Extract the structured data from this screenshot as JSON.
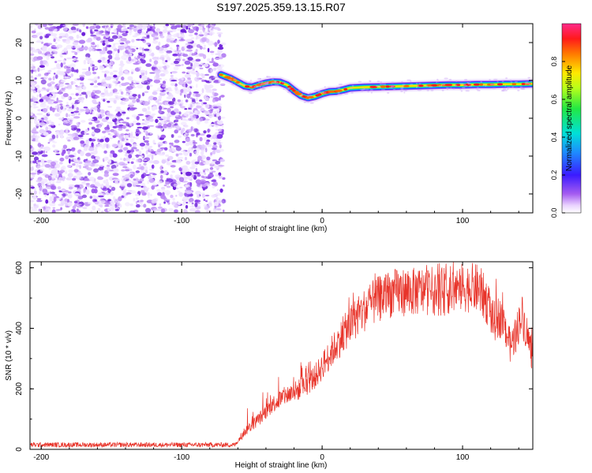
{
  "title": "S197.2025.359.13.15.R07",
  "chart_data": [
    {
      "type": "heatmap",
      "name": "spectrogram",
      "xlabel": "Height of straight line (km)",
      "ylabel": "Frequency (Hz)",
      "xlim": [
        -208,
        150
      ],
      "ylim": [
        -25,
        25
      ],
      "xticks": [
        -200,
        -100,
        0,
        100
      ],
      "yticks": [
        -20,
        -10,
        0,
        10,
        20
      ],
      "noise_region_x": [
        -208,
        -70
      ],
      "ridge": {
        "x": [
          -72,
          -65,
          -60,
          -55,
          -50,
          -45,
          -40,
          -35,
          -30,
          -25,
          -20,
          -15,
          -10,
          -5,
          0,
          5,
          10,
          15,
          20,
          30,
          40,
          50,
          60,
          70,
          80,
          90,
          100,
          110,
          120,
          130,
          140,
          150
        ],
        "y": [
          11.5,
          10.5,
          9.5,
          8.5,
          8.2,
          8.8,
          9.3,
          9.6,
          9.5,
          8.8,
          7.3,
          6.0,
          5.4,
          5.8,
          6.5,
          7.0,
          7.1,
          7.5,
          8.0,
          8.2,
          8.3,
          8.4,
          8.5,
          8.6,
          8.7,
          8.8,
          8.8,
          8.9,
          8.9,
          9.0,
          9.0,
          9.1
        ]
      },
      "colorbar": {
        "label": "Normalized spectral amplitude",
        "ticks": [
          "0.0",
          "0.2",
          "0.4",
          "0.6",
          "0.8"
        ],
        "range": [
          0,
          1
        ]
      }
    },
    {
      "type": "line",
      "name": "snr",
      "xlabel": "Height of straight line (km)",
      "ylabel": "SNR (10 * v/v)",
      "xlim": [
        -208,
        150
      ],
      "ylim": [
        0,
        620
      ],
      "xticks": [
        -200,
        -100,
        0,
        100
      ],
      "yticks": [
        0,
        200,
        400,
        600
      ],
      "color": "#e8342a",
      "envelope": {
        "x": [
          -208,
          -62,
          -55,
          -45,
          -35,
          -25,
          -15,
          -5,
          5,
          15,
          25,
          35,
          45,
          55,
          65,
          75,
          85,
          95,
          105,
          112,
          118,
          122,
          126,
          130,
          134,
          138,
          142,
          146,
          150
        ],
        "y": [
          15,
          15,
          60,
          100,
          150,
          180,
          200,
          240,
          310,
          380,
          440,
          480,
          510,
          520,
          520,
          525,
          520,
          530,
          535,
          530,
          480,
          420,
          440,
          410,
          340,
          380,
          450,
          380,
          300
        ]
      }
    }
  ]
}
